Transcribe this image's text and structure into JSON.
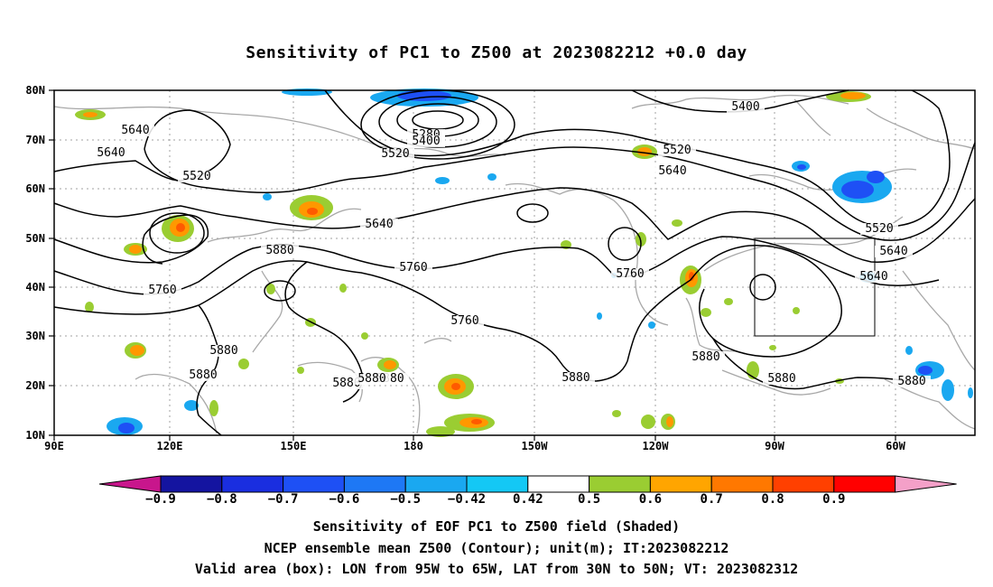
{
  "title": "Sensitivity of PC1 to Z500 at 2023082212 +0.0 day",
  "captions": [
    "Sensitivity of EOF PC1 to Z500 field (Shaded)",
    "NCEP ensemble mean Z500 (Contour); unit(m); IT:2023082212",
    "Valid area (box): LON from 95W to 65W, LAT from 30N to 50N; VT: 2023082312"
  ],
  "map": {
    "lon_labels": [
      "90E",
      "120E",
      "150E",
      "180",
      "150W",
      "120W",
      "90W",
      "60W"
    ],
    "lat_labels": [
      "80N",
      "70N",
      "60N",
      "50N",
      "40N",
      "30N",
      "20N",
      "10N"
    ],
    "valid_box": {
      "lon_west": "95W",
      "lon_east": "65W",
      "lat_south": "30N",
      "lat_north": "50N"
    },
    "contour_labels": [
      "5640",
      "5640",
      "5520",
      "5280",
      "5400",
      "5520",
      "5520",
      "5640",
      "5400",
      "5640",
      "5880",
      "5760",
      "5640",
      "5760",
      "5880",
      "5760",
      "5520",
      "5640",
      "5760",
      "5880",
      "5880",
      "5880",
      "5880",
      "5880",
      "5880",
      "5880",
      "5880"
    ]
  },
  "colorbar": {
    "labels": [
      "−0.9",
      "−0.8",
      "−0.7",
      "−0.6",
      "−0.5",
      "−0.42",
      "0.42",
      "0.5",
      "0.6",
      "0.7",
      "0.8",
      "0.9"
    ],
    "colors": [
      "#c8168c",
      "#1414a0",
      "#1a2ee0",
      "#1e50f5",
      "#1e78f5",
      "#1aa8f0",
      "#14c8f5",
      "#ffffff",
      "#9acd32",
      "#ffa500",
      "#ff7800",
      "#ff4000",
      "#ff0000",
      "#f4a0c8"
    ]
  }
}
